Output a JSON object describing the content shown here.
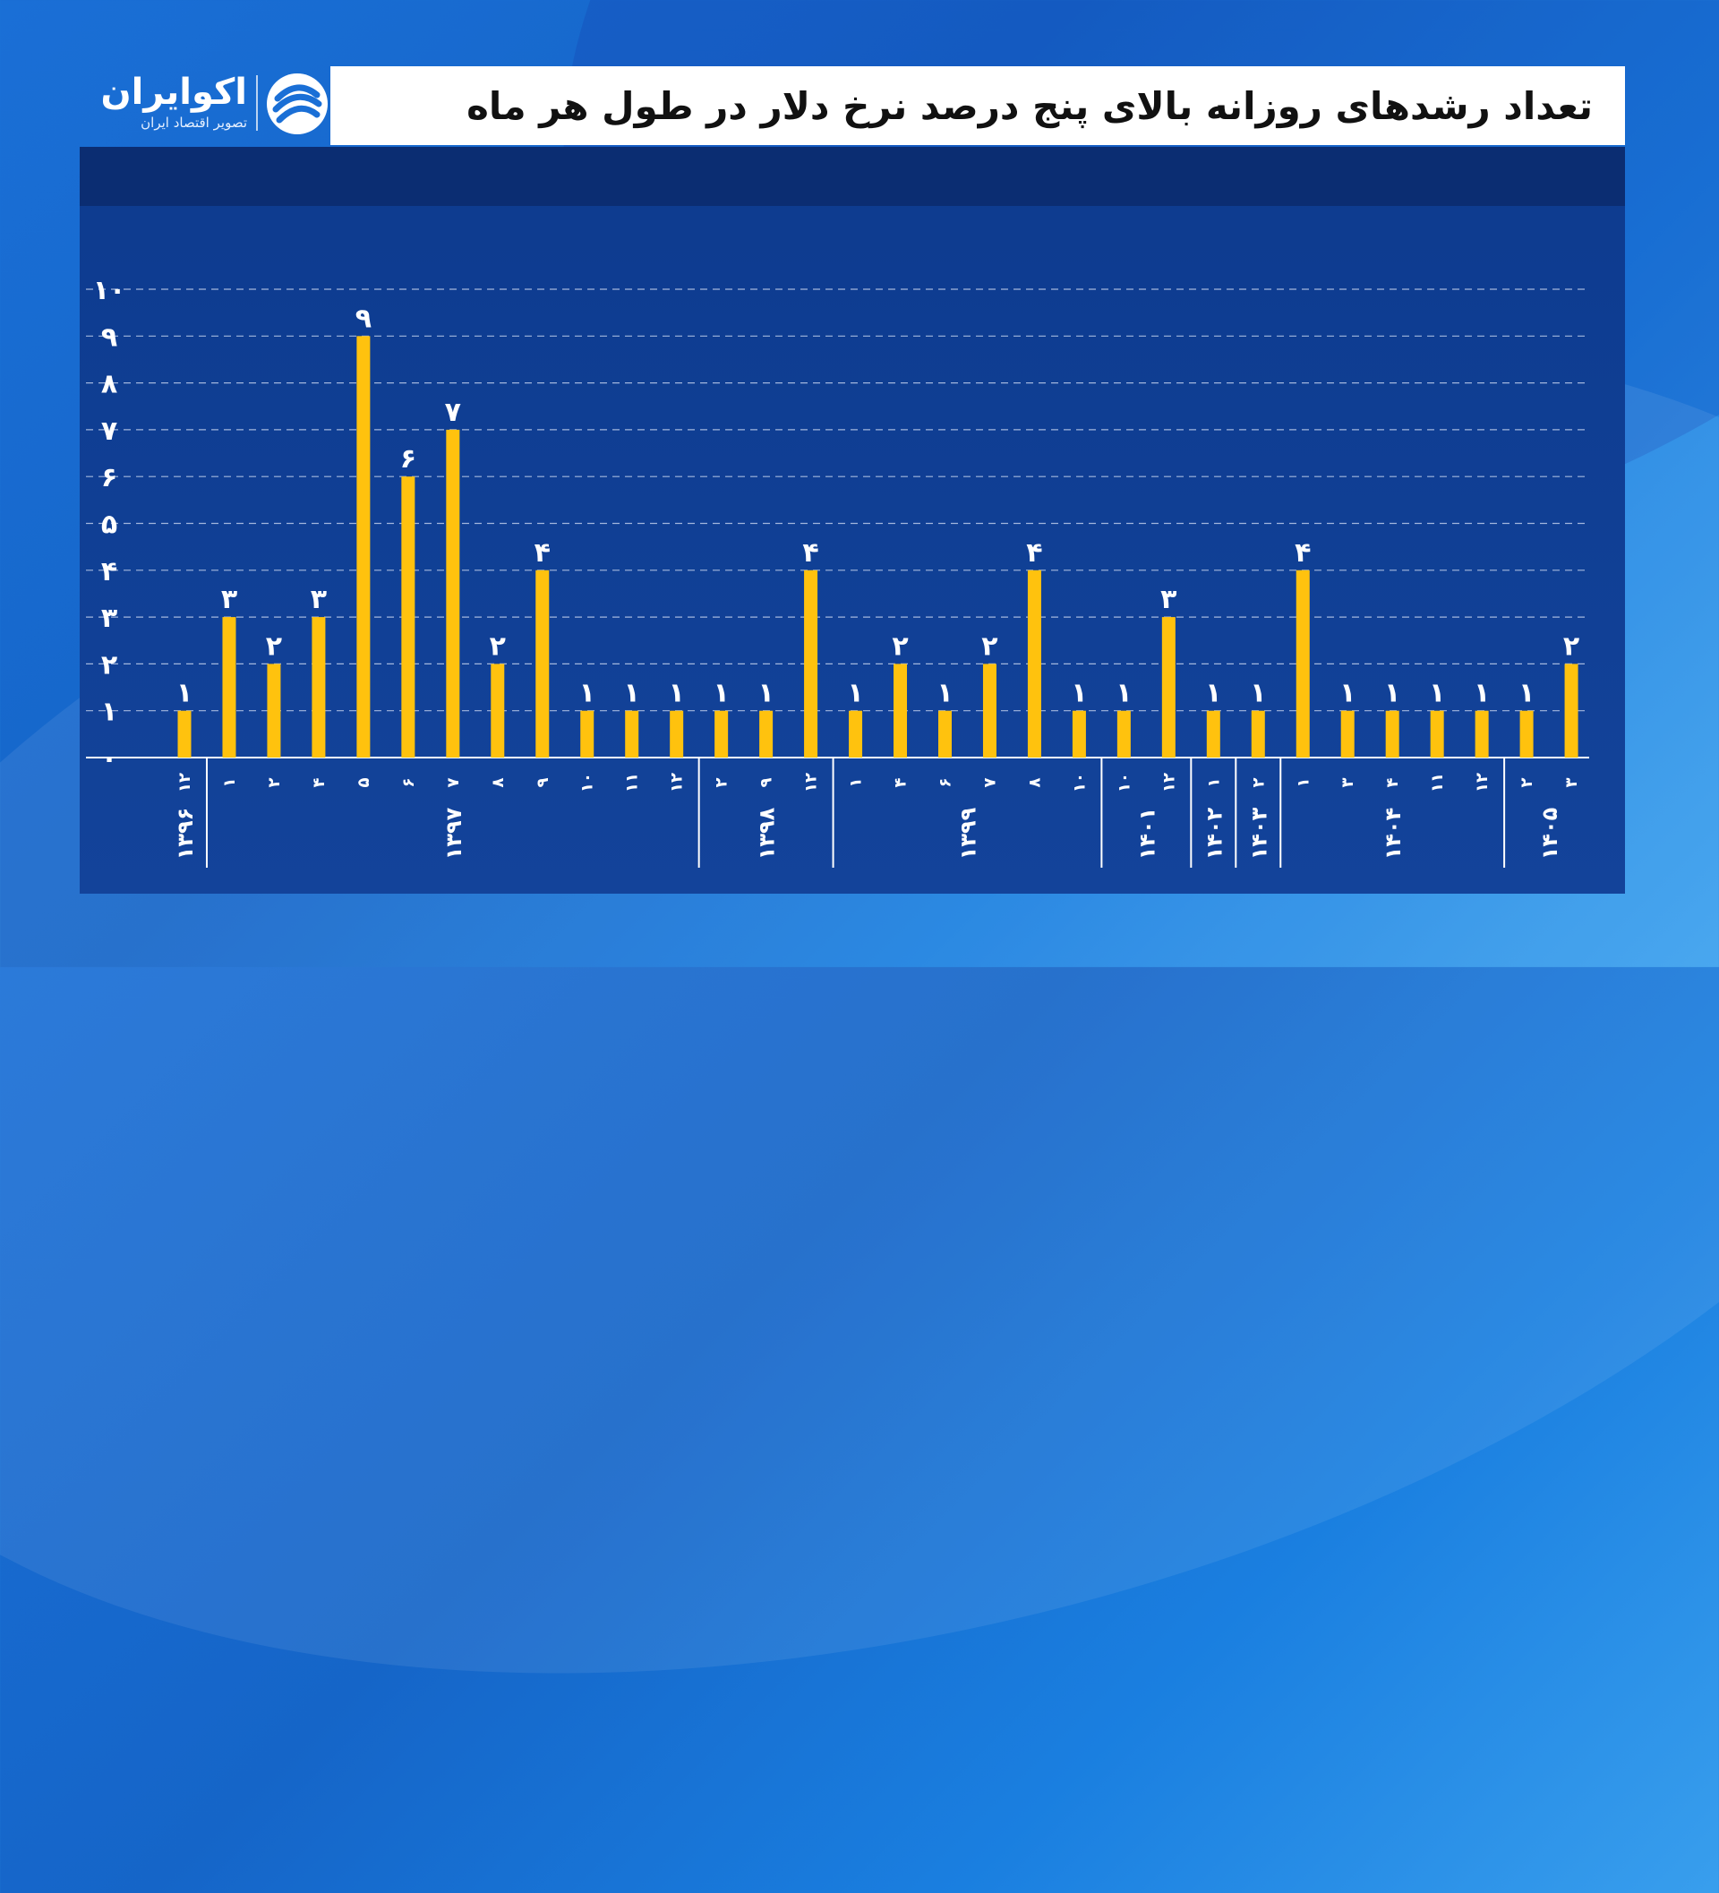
{
  "logo": {
    "name": "اکوایران",
    "tagline": "تصویر اقتصاد ایران",
    "icon": "ecoiran-logo-icon"
  },
  "title": "تعداد رشدهای روزانه بالای پنج درصد نرخ دلار در طول هر ماه",
  "colors": {
    "bar": "#FFC20E",
    "text": "#ffffff",
    "grid": "#c9d6f0"
  },
  "chart_data": {
    "type": "bar",
    "title": "تعداد رشدهای روزانه بالای پنج درصد نرخ دلار در طول هر ماه",
    "ylim": [
      0,
      10
    ],
    "y_ticks": [
      "۰",
      "۱",
      "۲",
      "۳",
      "۴",
      "۵",
      "۶",
      "۷",
      "۸",
      "۹",
      "۱۰"
    ],
    "grid": true,
    "categories": [
      "۱۲",
      "۱",
      "۲",
      "۴",
      "۵",
      "۶",
      "۷",
      "۸",
      "۹",
      "۱۰",
      "۱۱",
      "۱۲",
      "۲",
      "۹",
      "۱۲",
      "۱",
      "۴",
      "۶",
      "۷",
      "۸",
      "۱۰",
      "۱۰",
      "۱۲",
      "۱",
      "۲",
      "۱",
      "۳",
      "۴",
      "۱۱",
      "۱۲",
      "۲",
      "۳"
    ],
    "values": [
      1,
      3,
      2,
      3,
      9,
      6,
      7,
      2,
      4,
      1,
      1,
      1,
      1,
      1,
      4,
      1,
      2,
      1,
      2,
      4,
      1,
      1,
      3,
      1,
      1,
      4,
      1,
      1,
      1,
      1,
      1,
      2
    ],
    "value_labels": [
      "۱",
      "۳",
      "۲",
      "۳",
      "۹",
      "۶",
      "۷",
      "۲",
      "۴",
      "۱",
      "۱",
      "۱",
      "۱",
      "۱",
      "۴",
      "۱",
      "۲",
      "۱",
      "۲",
      "۴",
      "۱",
      "۱",
      "۳",
      "۱",
      "۱",
      "۴",
      "۱",
      "۱",
      "۱",
      "۱",
      "۱",
      "۲"
    ],
    "year_groups": [
      {
        "label": "۱۳۹۶",
        "start": 0,
        "end": 0
      },
      {
        "label": "۱۳۹۷",
        "start": 1,
        "end": 11
      },
      {
        "label": "۱۳۹۸",
        "start": 12,
        "end": 14
      },
      {
        "label": "۱۳۹۹",
        "start": 15,
        "end": 20
      },
      {
        "label": "۱۴۰۱",
        "start": 21,
        "end": 22
      },
      {
        "label": "۱۴۰۲",
        "start": 23,
        "end": 23
      },
      {
        "label": "۱۴۰۳",
        "start": 24,
        "end": 24
      },
      {
        "label": "۱۴۰۴",
        "start": 25,
        "end": 29
      },
      {
        "label": "۱۴۰۵",
        "start": 30,
        "end": 31
      }
    ]
  }
}
